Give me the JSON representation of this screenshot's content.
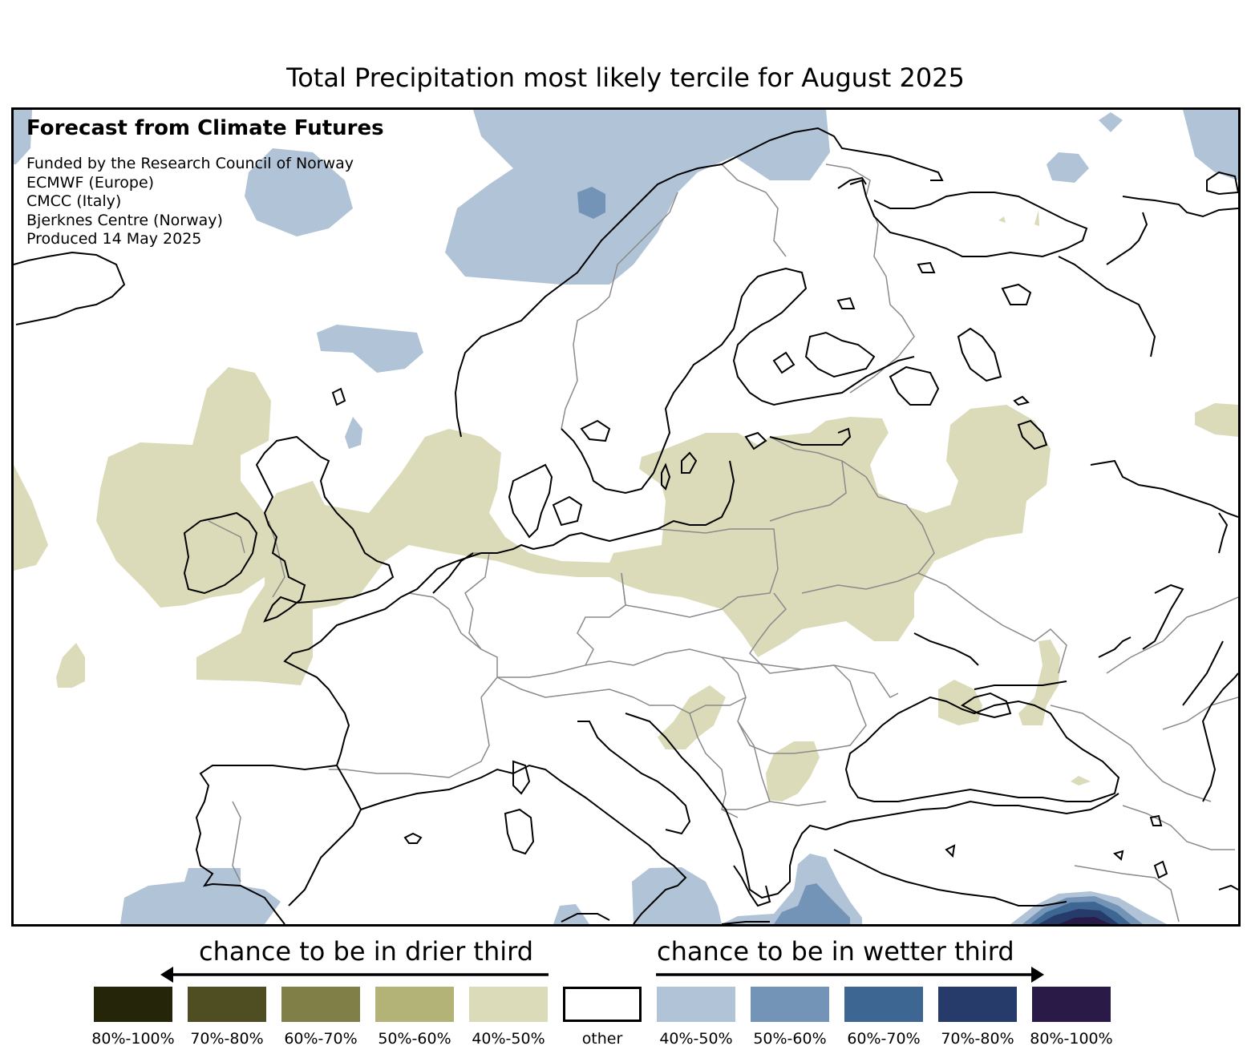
{
  "title": "Total Precipitation most likely tercile for August 2025",
  "credits": {
    "heading": "Forecast from Climate Futures",
    "lines": [
      "Funded by the Research Council of Norway",
      "ECMWF (Europe)",
      "CMCC (Italy)",
      "Bjerknes Centre (Norway)",
      "Produced 14 May 2025"
    ]
  },
  "legend": {
    "drier_label": "chance to be in drier third",
    "wetter_label": "chance to be in wetter third",
    "items": [
      {
        "label": "80%-100%",
        "color": "#25250a"
      },
      {
        "label": "70%-80%",
        "color": "#4f4e22"
      },
      {
        "label": "60%-70%",
        "color": "#817f48"
      },
      {
        "label": "50%-60%",
        "color": "#b4b377"
      },
      {
        "label": "40%-50%",
        "color": "#dbdbb9"
      },
      {
        "label": "other",
        "color": "#ffffff"
      },
      {
        "label": "40%-50%",
        "color": "#b1c3d6"
      },
      {
        "label": "50%-60%",
        "color": "#7394b6"
      },
      {
        "label": "60%-70%",
        "color": "#3d6692"
      },
      {
        "label": "70%-80%",
        "color": "#273b6b"
      },
      {
        "label": "80%-100%",
        "color": "#2a1a48"
      }
    ]
  },
  "map": {
    "region": "Europe",
    "variable": "Total Precipitation",
    "period": "August 2025",
    "colors": {
      "dry_40_50": "#dbdbb9",
      "wet_40_50": "#b1c3d6",
      "wet_50_60": "#7394b6",
      "wet_60_70": "#3d6692",
      "wet_70_80": "#273b6b",
      "wet_80_100": "#2a1a48",
      "coastline": "#000000",
      "border": "#8a8a8a"
    }
  }
}
